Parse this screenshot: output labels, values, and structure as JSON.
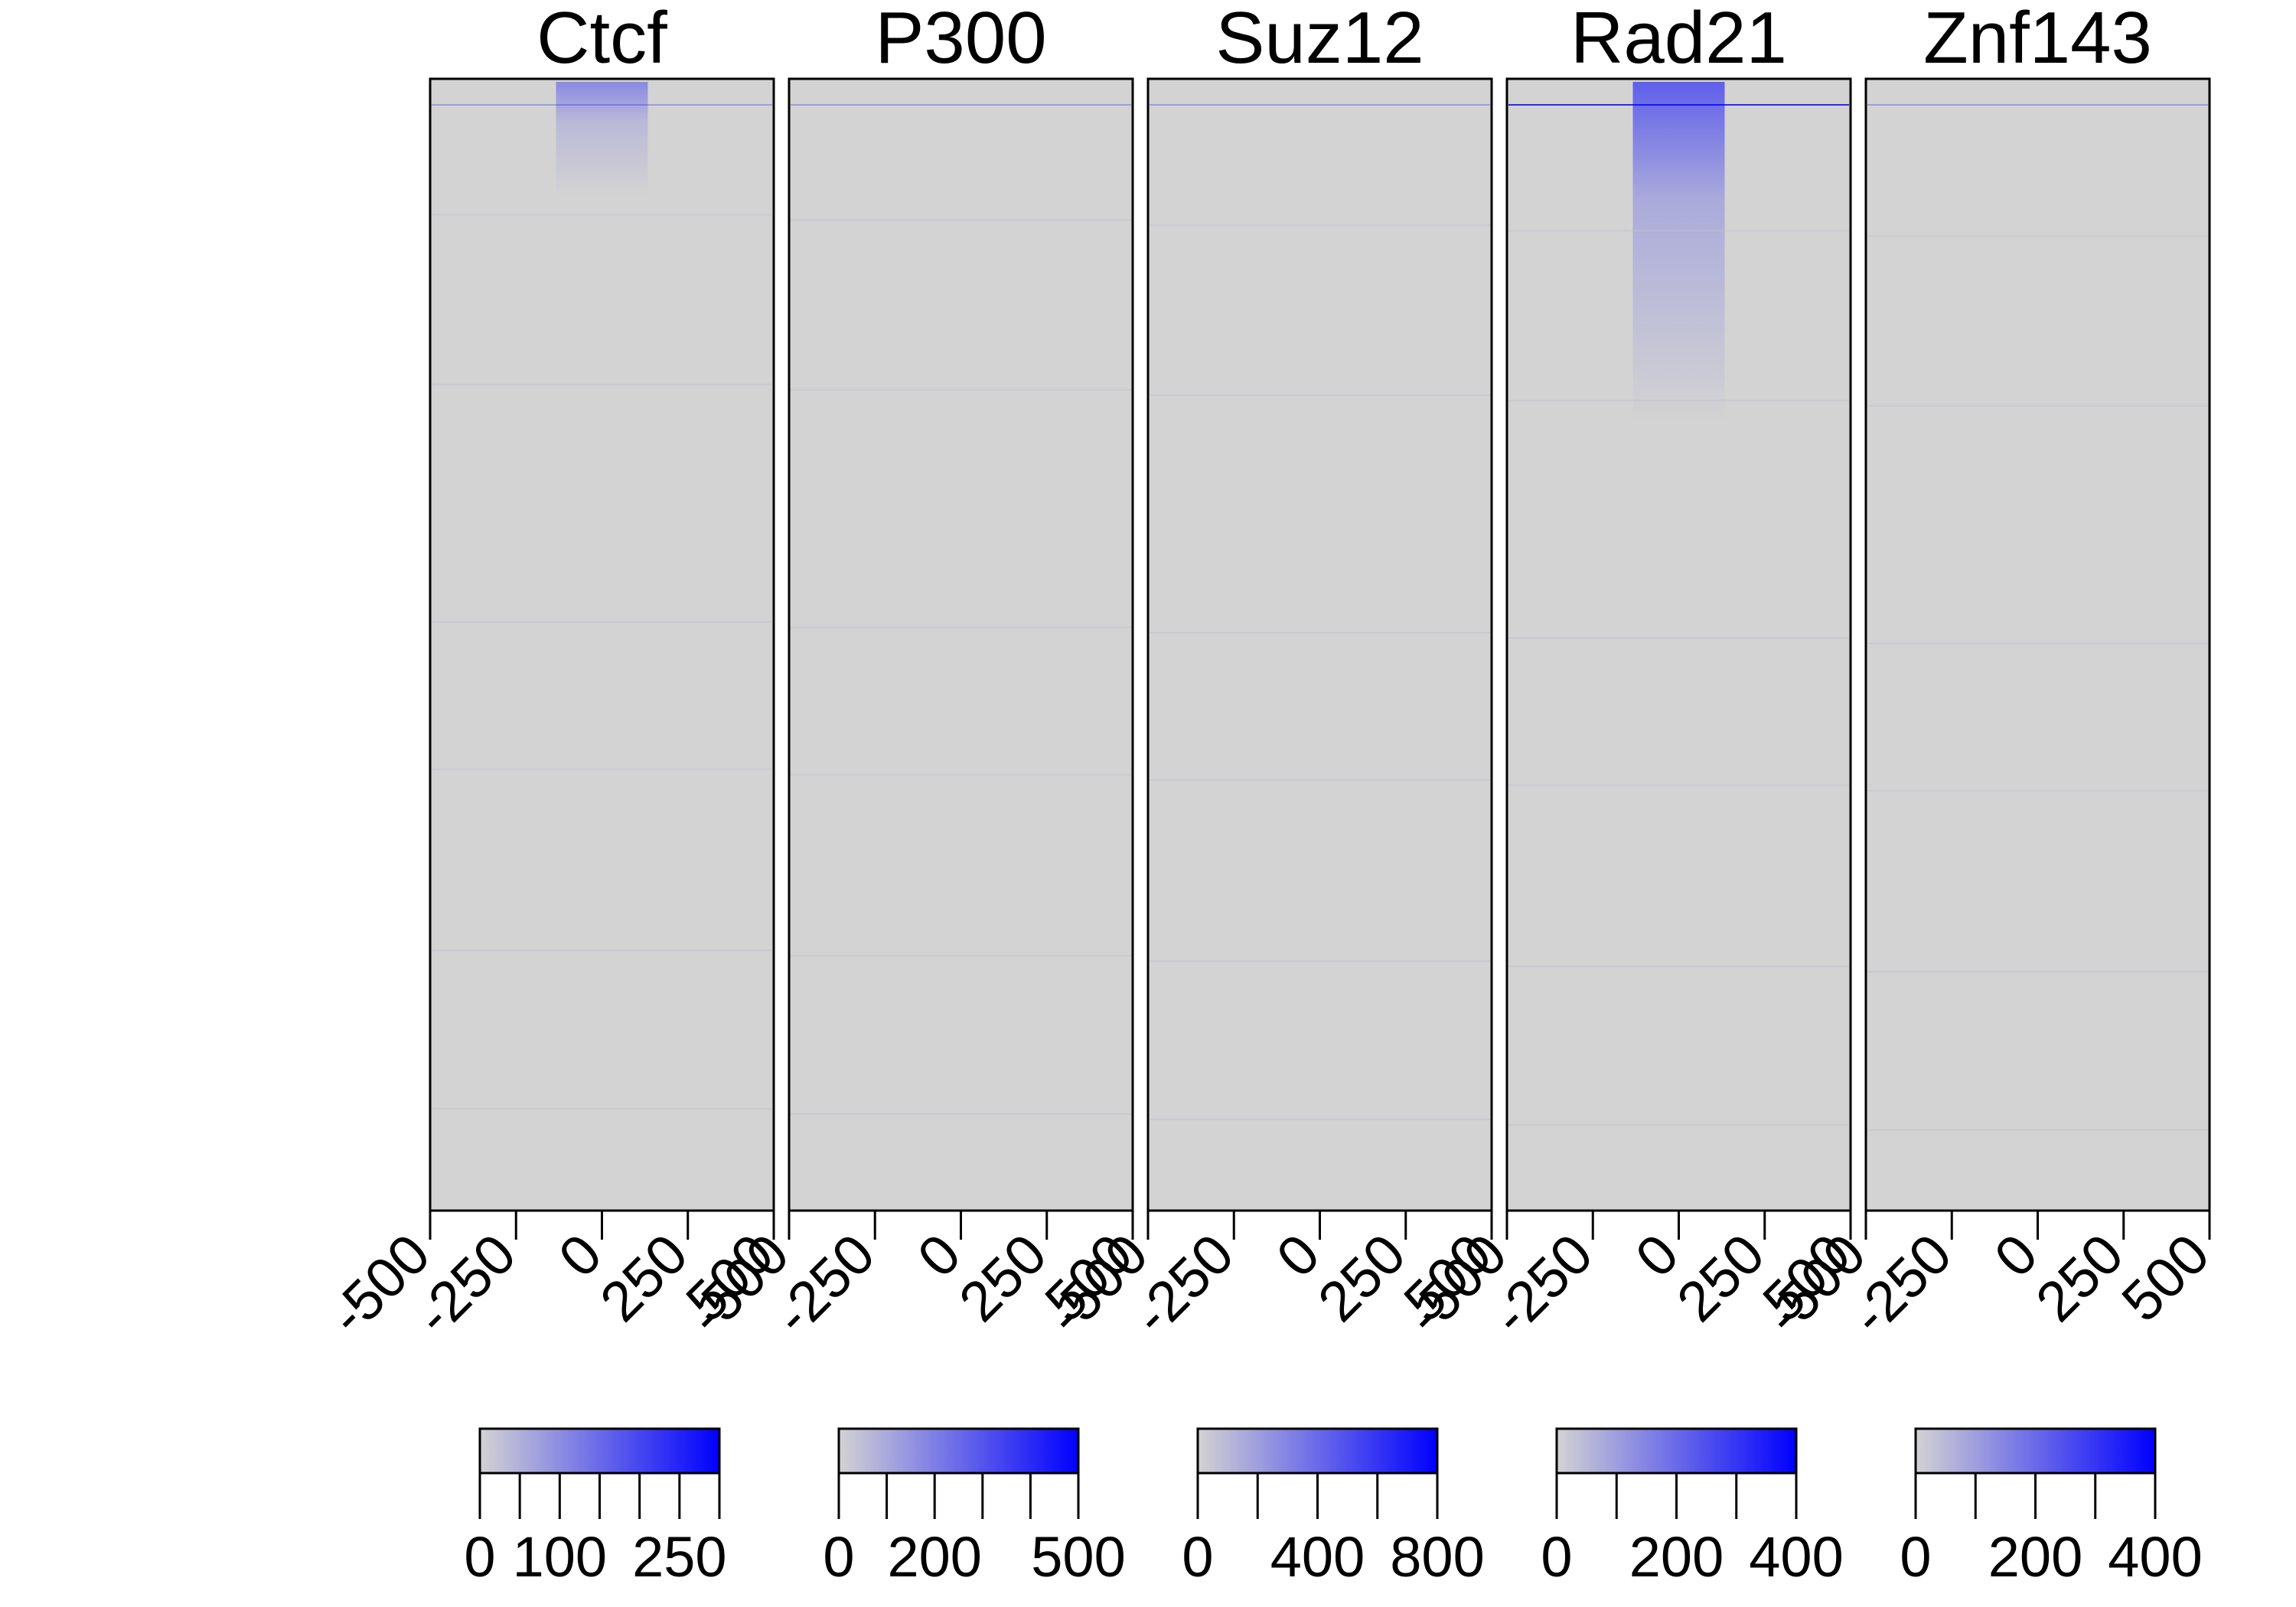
{
  "chart_data": [
    {
      "type": "heatmap",
      "title": "Ctcf",
      "x_ticks": [
        -500,
        -250,
        0,
        250,
        500
      ],
      "x_tick_labels": [
        "-500",
        "-250",
        "0",
        "250",
        "500"
      ],
      "xlim": [
        -500,
        500
      ],
      "color_scale": {
        "low": "#d3d3d3",
        "high": "#0000ff",
        "range": [
          0,
          300
        ],
        "ticks": [
          0,
          50,
          100,
          150,
          200,
          250,
          300
        ],
        "tick_labels": [
          "0",
          "100",
          "250"
        ],
        "labeled_ticks": [
          0,
          100,
          250
        ]
      },
      "signal_profile": {
        "center": 0,
        "peak_fraction_rows": [
          0.0,
          0.1
        ],
        "max_value": 300
      }
    },
    {
      "type": "heatmap",
      "title": "P300",
      "x_ticks": [
        -500,
        -250,
        0,
        250,
        500
      ],
      "x_tick_labels": [
        "-500",
        "-250",
        "0",
        "250",
        "500"
      ],
      "xlim": [
        -500,
        500
      ],
      "color_scale": {
        "low": "#d3d3d3",
        "high": "#0000ff",
        "range": [
          0,
          500
        ],
        "ticks": [
          0,
          100,
          200,
          300,
          400,
          500
        ],
        "tick_labels": [
          "0",
          "200",
          "500"
        ],
        "labeled_ticks": [
          0,
          200,
          500
        ]
      }
    },
    {
      "type": "heatmap",
      "title": "Suz12",
      "x_ticks": [
        -500,
        -250,
        0,
        250,
        500
      ],
      "x_tick_labels": [
        "-500",
        "-250",
        "0",
        "250",
        "500"
      ],
      "xlim": [
        -500,
        500
      ],
      "color_scale": {
        "low": "#d3d3d3",
        "high": "#0000ff",
        "range": [
          0,
          800
        ],
        "ticks": [
          0,
          200,
          400,
          600,
          800
        ],
        "tick_labels": [
          "0",
          "400",
          "800"
        ],
        "labeled_ticks": [
          0,
          400,
          800
        ]
      }
    },
    {
      "type": "heatmap",
      "title": "Rad21",
      "x_ticks": [
        -500,
        -250,
        0,
        250,
        500
      ],
      "x_tick_labels": [
        "-500",
        "-250",
        "0",
        "250",
        "500"
      ],
      "xlim": [
        -500,
        500
      ],
      "color_scale": {
        "low": "#d3d3d3",
        "high": "#0000ff",
        "range": [
          0,
          400
        ],
        "ticks": [
          0,
          100,
          200,
          300,
          400
        ],
        "tick_labels": [
          "0",
          "200",
          "400"
        ],
        "labeled_ticks": [
          0,
          200,
          400
        ]
      },
      "signal_profile": {
        "center": 0,
        "peak_fraction_rows": [
          0.0,
          0.3
        ],
        "max_value": 400
      }
    },
    {
      "type": "heatmap",
      "title": "Znf143",
      "x_ticks": [
        -500,
        -250,
        0,
        250,
        500
      ],
      "x_tick_labels": [
        "-500",
        "-250",
        "0",
        "250",
        "500"
      ],
      "xlim": [
        -500,
        500
      ],
      "color_scale": {
        "low": "#d3d3d3",
        "high": "#0000ff",
        "range": [
          0,
          400
        ],
        "ticks": [
          0,
          100,
          200,
          300,
          400
        ],
        "tick_labels": [
          "0",
          "200",
          "400"
        ],
        "labeled_ticks": [
          0,
          200,
          400
        ]
      }
    }
  ],
  "colors": {
    "background": "#ffffff",
    "heatmap_base": "#d3d3d3",
    "signal": "#0000ff",
    "axis": "#000000"
  }
}
